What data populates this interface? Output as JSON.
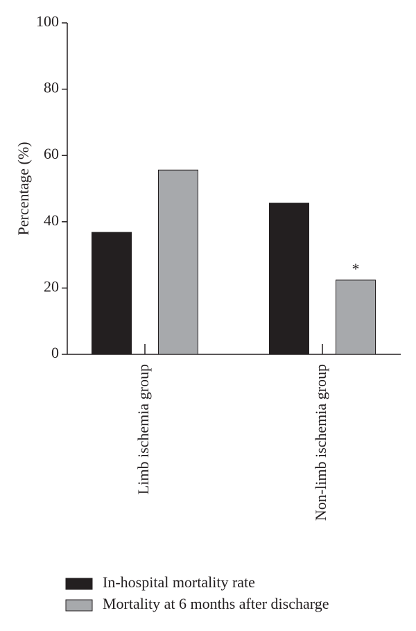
{
  "chart_data": {
    "type": "bar",
    "ylabel": "Percentage (%)",
    "categories": [
      "Limb ischemia group",
      "Non-limb ischemia group"
    ],
    "series": [
      {
        "name": "In-hospital mortality rate",
        "color": "#231f20",
        "values": [
          36.8,
          45.6
        ]
      },
      {
        "name": "Mortality at 6 months after discharge",
        "color": "#a7a9ac",
        "values": [
          55.6,
          22.4
        ]
      }
    ],
    "annotation": "*",
    "ylim": [
      0,
      100
    ],
    "yticks": [
      0,
      20,
      40,
      60,
      80,
      100
    ]
  }
}
